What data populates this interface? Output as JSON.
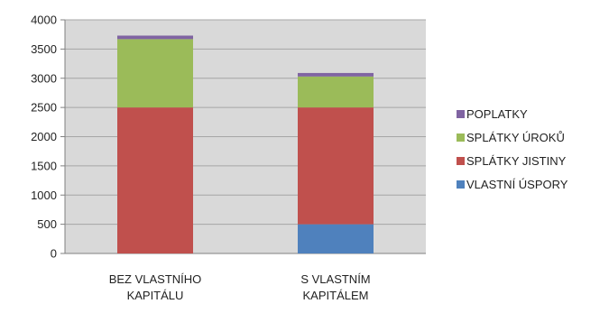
{
  "chart_data": {
    "type": "bar",
    "stacked": true,
    "categories": [
      [
        "BEZ VLASTNÍHO",
        "KAPITÁLU"
      ],
      [
        "S VLASTNÍM",
        "KAPITÁLEM"
      ]
    ],
    "series": [
      {
        "name": "VLASTNÍ ÚSPORY",
        "color": "#4f81bd",
        "values": [
          0,
          500
        ]
      },
      {
        "name": "SPLÁTKY JISTINY",
        "color": "#c0504d",
        "values": [
          2500,
          2000
        ]
      },
      {
        "name": "SPLÁTKY ÚROKŮ",
        "color": "#9bbb59",
        "values": [
          1170,
          530
        ]
      },
      {
        "name": "POPLATKY",
        "color": "#8064a2",
        "values": [
          60,
          60
        ]
      }
    ],
    "ylim": [
      0,
      4000
    ],
    "yticks": [
      0,
      500,
      1000,
      1500,
      2000,
      2500,
      3000,
      3500,
      4000
    ],
    "grid": true,
    "legend": "right",
    "title": "",
    "xlabel": "",
    "ylabel": ""
  }
}
